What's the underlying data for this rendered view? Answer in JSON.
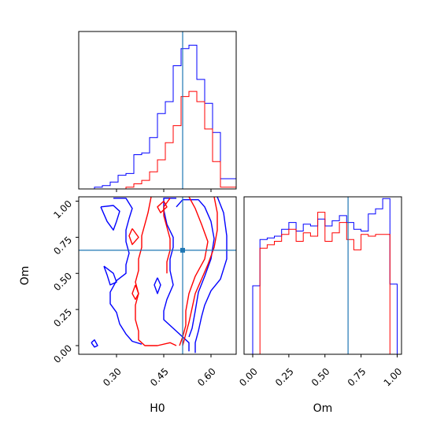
{
  "chart_data": {
    "type": "corner",
    "colors": {
      "series_a": "#0000ff",
      "series_b": "#ff0000",
      "truth": "#1f77b4",
      "axes": "#000000"
    },
    "parameters": [
      "H0",
      "Om"
    ],
    "truth": {
      "H0": 0.51,
      "Om": 0.66
    },
    "axis_ranges": {
      "H0": [
        0.18,
        0.68
      ],
      "Om": [
        -0.06,
        1.03
      ]
    },
    "tick_labels": {
      "H0": [
        "0.30",
        "0.45",
        "0.60"
      ],
      "Om": [
        "0.00",
        "0.25",
        "0.50",
        "0.75",
        "1.00"
      ]
    },
    "tick_values": {
      "H0": [
        0.3,
        0.45,
        0.6
      ],
      "Om": [
        0.0,
        0.25,
        0.5,
        0.75,
        1.0
      ]
    },
    "xlabel_H0": "H0",
    "xlabel_Om": "Om",
    "ylabel_joint": "Om",
    "h0_histogram": {
      "edges": [
        0.18,
        0.205,
        0.23,
        0.255,
        0.28,
        0.305,
        0.33,
        0.355,
        0.38,
        0.405,
        0.43,
        0.455,
        0.48,
        0.505,
        0.53,
        0.555,
        0.58,
        0.605,
        0.63,
        0.655,
        0.68
      ],
      "series": [
        {
          "counts": [
            0,
            0,
            0.01,
            0.02,
            0.04,
            0.08,
            0.09,
            0.2,
            0.21,
            0.3,
            0.44,
            0.51,
            0.72,
            0.82,
            0.84,
            0.64,
            0.5,
            0.33,
            0.06,
            0.06
          ]
        },
        {
          "counts": [
            0,
            0,
            0,
            0,
            0,
            0,
            0.01,
            0.03,
            0.05,
            0.1,
            0.17,
            0.27,
            0.37,
            0.54,
            0.57,
            0.51,
            0.35,
            0.16,
            0.01,
            0.01
          ]
        }
      ]
    },
    "om_histogram": {
      "edges": [
        0.0,
        0.05,
        0.1,
        0.15,
        0.2,
        0.25,
        0.3,
        0.35,
        0.4,
        0.45,
        0.5,
        0.55,
        0.6,
        0.65,
        0.7,
        0.75,
        0.8,
        0.85,
        0.9,
        0.95,
        1.0
      ],
      "series": [
        {
          "counts": [
            0.4,
            0.67,
            0.68,
            0.69,
            0.73,
            0.77,
            0.72,
            0.76,
            0.75,
            0.79,
            0.75,
            0.78,
            0.81,
            0.77,
            0.73,
            0.72,
            0.82,
            0.85,
            0.91,
            0.41
          ]
        },
        {
          "counts": [
            0.0,
            0.62,
            0.64,
            0.66,
            0.7,
            0.73,
            0.66,
            0.71,
            0.69,
            0.83,
            0.66,
            0.71,
            0.77,
            0.67,
            0.61,
            0.7,
            0.69,
            0.7,
            0.7,
            0.0
          ]
        }
      ]
    },
    "joint_contours": {
      "series_a": [
        [
          [
            0.29,
            1.02
          ],
          [
            0.33,
            1.02
          ],
          [
            0.35,
            0.95
          ],
          [
            0.34,
            0.88
          ],
          [
            0.33,
            0.8
          ],
          [
            0.33,
            0.72
          ],
          [
            0.34,
            0.64
          ],
          [
            0.33,
            0.56
          ],
          [
            0.33,
            0.5
          ],
          [
            0.3,
            0.45
          ],
          [
            0.28,
            0.37
          ],
          [
            0.28,
            0.29
          ],
          [
            0.3,
            0.23
          ],
          [
            0.31,
            0.15
          ],
          [
            0.33,
            0.08
          ],
          [
            0.35,
            0.03
          ],
          [
            0.38,
            0.01
          ]
        ],
        [
          [
            0.25,
            0.96
          ],
          [
            0.29,
            0.97
          ],
          [
            0.31,
            0.93
          ],
          [
            0.3,
            0.86
          ],
          [
            0.29,
            0.8
          ],
          [
            0.27,
            0.86
          ],
          [
            0.25,
            0.96
          ]
        ],
        [
          [
            0.26,
            0.55
          ],
          [
            0.29,
            0.5
          ],
          [
            0.3,
            0.44
          ],
          [
            0.28,
            0.42
          ],
          [
            0.27,
            0.49
          ],
          [
            0.26,
            0.55
          ]
        ],
        [
          [
            0.49,
            1.02
          ],
          [
            0.45,
            1.02
          ],
          [
            0.45,
            0.94
          ],
          [
            0.46,
            0.84
          ],
          [
            0.48,
            0.75
          ],
          [
            0.48,
            0.68
          ],
          [
            0.47,
            0.6
          ],
          [
            0.47,
            0.52
          ],
          [
            0.48,
            0.42
          ],
          [
            0.46,
            0.32
          ],
          [
            0.45,
            0.24
          ],
          [
            0.45,
            0.18
          ],
          [
            0.49,
            0.1
          ],
          [
            0.53,
            0.02
          ],
          [
            0.53,
            -0.04
          ]
        ],
        [
          [
            0.49,
            0.96
          ],
          [
            0.51,
            1.01
          ],
          [
            0.56,
            1.01
          ],
          [
            0.58,
            0.96
          ],
          [
            0.6,
            0.86
          ],
          [
            0.61,
            0.74
          ],
          [
            0.6,
            0.6
          ],
          [
            0.58,
            0.48
          ],
          [
            0.56,
            0.37
          ],
          [
            0.55,
            0.24
          ],
          [
            0.54,
            0.12
          ],
          [
            0.53,
            0.06
          ]
        ],
        [
          [
            0.62,
            1.03
          ],
          [
            0.64,
            0.92
          ],
          [
            0.65,
            0.76
          ],
          [
            0.65,
            0.6
          ],
          [
            0.63,
            0.46
          ],
          [
            0.6,
            0.38
          ],
          [
            0.58,
            0.28
          ],
          [
            0.57,
            0.2
          ],
          [
            0.56,
            0.1
          ],
          [
            0.55,
            0.02
          ],
          [
            0.55,
            -0.05
          ]
        ],
        [
          [
            0.43,
            0.47
          ],
          [
            0.44,
            0.42
          ],
          [
            0.43,
            0.36
          ],
          [
            0.42,
            0.42
          ],
          [
            0.43,
            0.47
          ]
        ],
        [
          [
            0.22,
            0.02
          ],
          [
            0.23,
            -0.01
          ],
          [
            0.24,
            0.0
          ],
          [
            0.23,
            0.04
          ],
          [
            0.22,
            0.02
          ]
        ]
      ],
      "series_b": [
        [
          [
            0.41,
            1.03
          ],
          [
            0.4,
            0.92
          ],
          [
            0.39,
            0.84
          ],
          [
            0.38,
            0.76
          ],
          [
            0.38,
            0.68
          ],
          [
            0.37,
            0.6
          ],
          [
            0.37,
            0.52
          ],
          [
            0.36,
            0.44
          ],
          [
            0.37,
            0.36
          ],
          [
            0.36,
            0.28
          ],
          [
            0.36,
            0.18
          ],
          [
            0.37,
            0.1
          ],
          [
            0.37,
            0.04
          ],
          [
            0.39,
            0.0
          ],
          [
            0.43,
            0.0
          ],
          [
            0.47,
            0.02
          ],
          [
            0.49,
            0.0
          ]
        ],
        [
          [
            0.35,
            0.81
          ],
          [
            0.37,
            0.75
          ],
          [
            0.35,
            0.7
          ],
          [
            0.34,
            0.76
          ],
          [
            0.35,
            0.81
          ]
        ],
        [
          [
            0.45,
            1.0
          ],
          [
            0.46,
            0.96
          ],
          [
            0.44,
            0.92
          ],
          [
            0.43,
            0.96
          ],
          [
            0.45,
            1.0
          ]
        ],
        [
          [
            0.47,
            1.02
          ],
          [
            0.45,
            0.96
          ],
          [
            0.45,
            0.9
          ],
          [
            0.46,
            0.82
          ],
          [
            0.47,
            0.74
          ],
          [
            0.47,
            0.66
          ],
          [
            0.46,
            0.58
          ],
          [
            0.46,
            0.5
          ]
        ],
        [
          [
            0.53,
            1.03
          ],
          [
            0.55,
            0.95
          ],
          [
            0.57,
            0.84
          ],
          [
            0.59,
            0.72
          ],
          [
            0.58,
            0.6
          ],
          [
            0.55,
            0.48
          ],
          [
            0.53,
            0.36
          ],
          [
            0.52,
            0.24
          ],
          [
            0.52,
            0.14
          ],
          [
            0.51,
            0.06
          ],
          [
            0.5,
            0.0
          ]
        ],
        [
          [
            0.61,
            1.03
          ],
          [
            0.62,
            0.92
          ],
          [
            0.62,
            0.8
          ],
          [
            0.61,
            0.68
          ],
          [
            0.59,
            0.56
          ],
          [
            0.57,
            0.46
          ],
          [
            0.55,
            0.36
          ],
          [
            0.54,
            0.26
          ],
          [
            0.53,
            0.16
          ],
          [
            0.52,
            0.08
          ],
          [
            0.51,
            0.0
          ]
        ],
        [
          [
            0.36,
            0.42
          ],
          [
            0.37,
            0.36
          ],
          [
            0.36,
            0.32
          ],
          [
            0.35,
            0.36
          ],
          [
            0.36,
            0.42
          ]
        ]
      ]
    }
  }
}
